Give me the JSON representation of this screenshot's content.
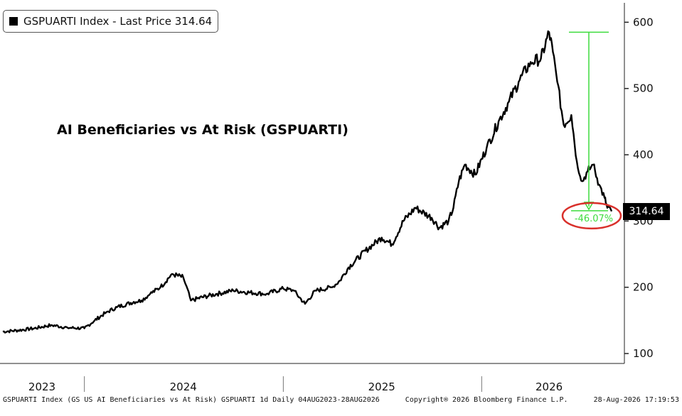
{
  "legend": {
    "text": "GSPUARTI Index - Last Price 314.64"
  },
  "last_price_tag": "314.64",
  "footer": {
    "left": "GSPUARTI Index (GS US AI Beneficiaries vs At Risk) GSPUARTI 1d Daily 04AUG2023-28AUG2026",
    "middle": "Copyright® 2026 Bloomberg Finance L.P.",
    "right": "28-Aug-2026 17:19:53"
  },
  "chart_data": {
    "type": "line",
    "title": "AI Beneficiaries vs At Risk (GSPUARTI)",
    "xlabel": "",
    "ylabel": "",
    "x_range": [
      "2023-08-04",
      "2026-08-28"
    ],
    "ylim": [
      85,
      625
    ],
    "y_ticks": [
      100,
      200,
      300,
      400,
      500,
      600
    ],
    "x_tick_labels": [
      {
        "label": "2023",
        "date": "2023-10-15"
      },
      {
        "label": "2024",
        "date": "2024-07-01"
      },
      {
        "label": "2025",
        "date": "2025-07-01"
      },
      {
        "label": "2026",
        "date": "2026-05-05"
      }
    ],
    "year_separators": [
      "2024-01-01",
      "2025-01-01",
      "2026-01-01"
    ],
    "grid": false,
    "axis_position": "right",
    "line_color": "#000000",
    "accent_color": "#3ddc3d",
    "highlight_color": "#d9302b",
    "series": [
      {
        "x": [
          "2023-08-04",
          "2023-09-01",
          "2023-10-01",
          "2023-11-01",
          "2023-12-01",
          "2024-01-01",
          "2024-01-20",
          "2024-02-10",
          "2024-03-01",
          "2024-04-01",
          "2024-04-15",
          "2024-05-01",
          "2024-05-20",
          "2024-06-10",
          "2024-07-01",
          "2024-07-15",
          "2024-08-05",
          "2024-09-01",
          "2024-10-01",
          "2024-11-01",
          "2024-12-01",
          "2025-01-01",
          "2025-01-20",
          "2025-02-10",
          "2025-03-01",
          "2025-04-01",
          "2025-04-15",
          "2025-05-01",
          "2025-06-01",
          "2025-07-01",
          "2025-07-20",
          "2025-08-10",
          "2025-09-01",
          "2025-10-01",
          "2025-10-15",
          "2025-11-01",
          "2025-11-10",
          "2025-11-20",
          "2025-12-01",
          "2025-12-20",
          "2026-01-10",
          "2026-02-01",
          "2026-02-20",
          "2026-03-10",
          "2026-04-01",
          "2026-04-20",
          "2026-05-05",
          "2026-05-12",
          "2026-05-20",
          "2026-06-01",
          "2026-06-15",
          "2026-06-25",
          "2026-07-05",
          "2026-07-15",
          "2026-07-25",
          "2026-08-05",
          "2026-08-15",
          "2026-08-20",
          "2026-08-28"
        ],
        "values": [
          133,
          135,
          138,
          143,
          139,
          138,
          150,
          162,
          170,
          178,
          180,
          190,
          200,
          220,
          215,
          180,
          185,
          190,
          195,
          192,
          190,
          198,
          195,
          175,
          195,
          200,
          210,
          230,
          255,
          275,
          265,
          300,
          320,
          305,
          290,
          300,
          320,
          360,
          385,
          370,
          410,
          450,
          480,
          510,
          540,
          545,
          585,
          555,
          510,
          445,
          460,
          390,
          360,
          375,
          385,
          355,
          335,
          320,
          314.64
        ]
      }
    ],
    "drawdown": {
      "label": "-46.07%",
      "peak_value": 585,
      "trough_value": 315.5
    }
  }
}
